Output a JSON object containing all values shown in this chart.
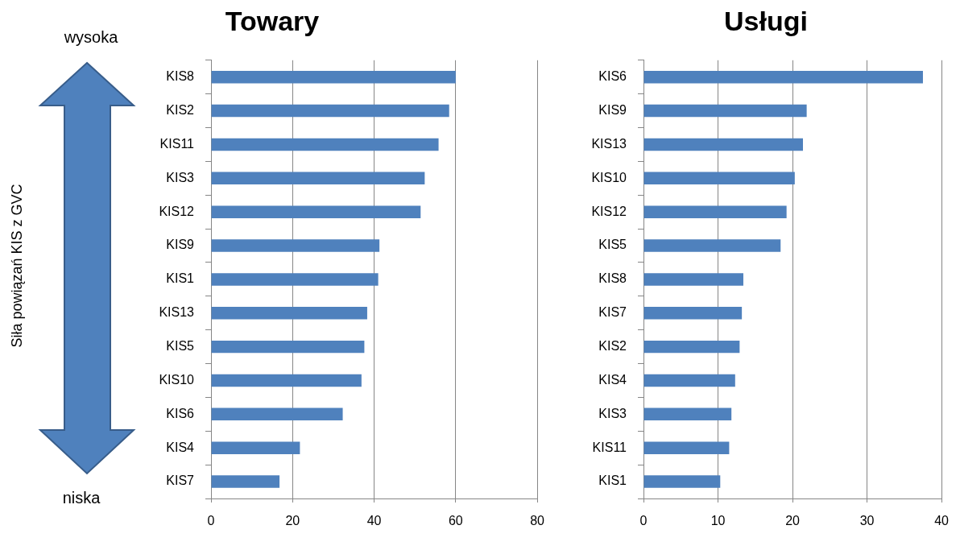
{
  "chart_data": [
    {
      "type": "bar",
      "orientation": "horizontal",
      "title": "Towary",
      "ylabel": "Siła powiązań KIS z GVC",
      "annotations": [
        "wysoka",
        "niska"
      ],
      "categories": [
        "KIS8",
        "KIS2",
        "KIS11",
        "KIS3",
        "KIS12",
        "KIS9",
        "KIS1",
        "KIS13",
        "KIS5",
        "KIS10",
        "KIS6",
        "KIS4",
        "KIS7"
      ],
      "values": [
        60,
        58.4,
        55.8,
        52.4,
        51.4,
        41.3,
        41,
        38.3,
        37.6,
        36.9,
        32.3,
        21.8,
        16.8
      ],
      "color": "#4f81bd",
      "xlim": [
        0,
        80
      ],
      "xticks": [
        0,
        20,
        40,
        60,
        80
      ],
      "grid": "x"
    },
    {
      "type": "bar",
      "orientation": "horizontal",
      "title": "Usługi",
      "categories": [
        "KIS6",
        "KIS9",
        "KIS13",
        "KIS10",
        "KIS12",
        "KIS5",
        "KIS8",
        "KIS7",
        "KIS2",
        "KIS4",
        "KIS3",
        "KIS11",
        "KIS1"
      ],
      "values": [
        37.5,
        21.9,
        21.4,
        20.3,
        19.2,
        18.4,
        13.4,
        13.2,
        12.9,
        12.3,
        11.8,
        11.5,
        10.3
      ],
      "color": "#4f81bd",
      "xlim": [
        0,
        40
      ],
      "xticks": [
        0,
        10,
        20,
        30,
        40
      ],
      "grid": "x"
    }
  ]
}
